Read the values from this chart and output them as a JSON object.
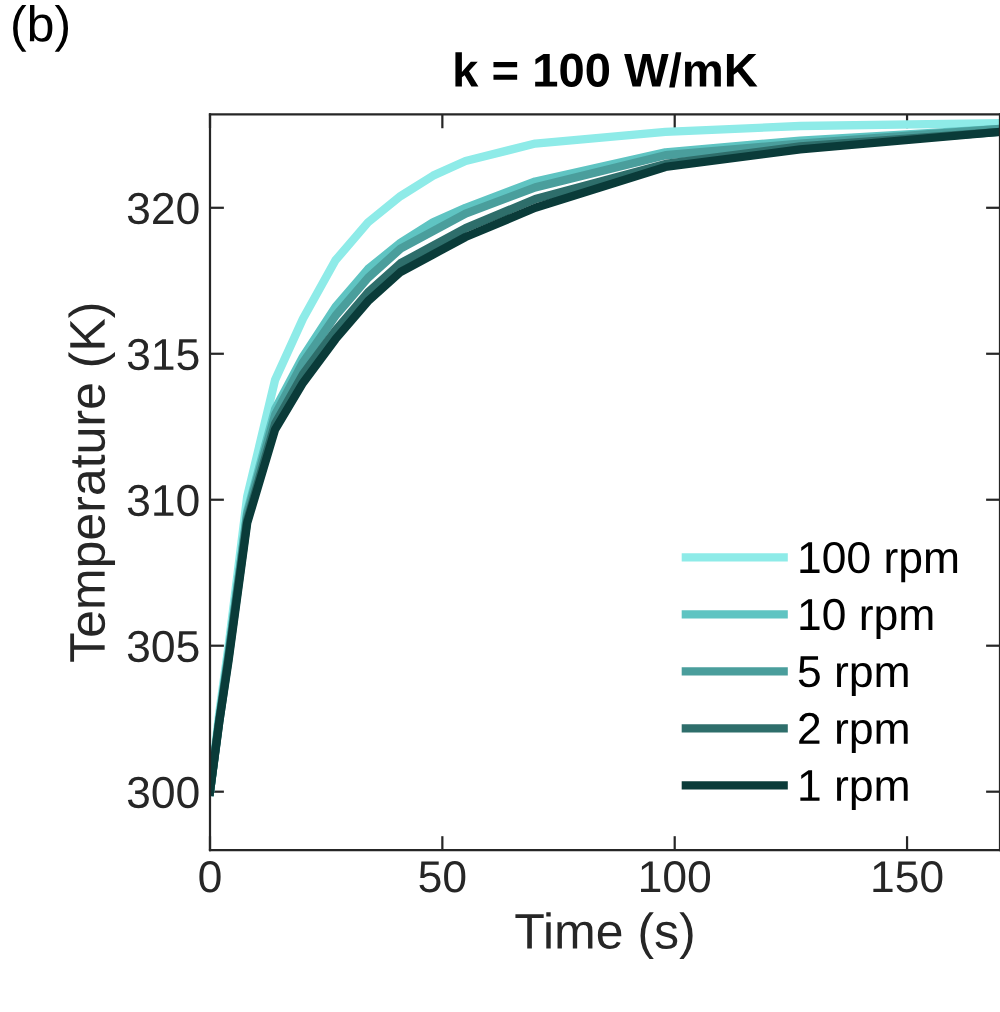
{
  "chart_data": {
    "type": "line",
    "title": "k = 100 W/mK",
    "xlabel": "Time (s)",
    "ylabel": "Temperature (K)",
    "annotations": [
      "(b)"
    ],
    "x": [
      0,
      2,
      4,
      8,
      14,
      20,
      27,
      34,
      41,
      48,
      55,
      70,
      98,
      127,
      170
    ],
    "series": [
      {
        "name": "100 rpm",
        "color": "#8eebe8",
        "values": [
          300,
          302.7,
          305.0,
          310.1,
          314.1,
          316.2,
          318.2,
          319.5,
          320.4,
          321.1,
          321.6,
          322.2,
          322.6,
          322.8,
          322.9
        ]
      },
      {
        "name": "10 rpm",
        "color": "#5fc4c2",
        "values": [
          300,
          302.5,
          304.7,
          309.6,
          313.1,
          314.9,
          316.6,
          317.9,
          318.8,
          319.5,
          320.0,
          320.9,
          321.9,
          322.3,
          322.7
        ]
      },
      {
        "name": "5 rpm",
        "color": "#4a9e9c",
        "values": [
          300,
          302.5,
          304.7,
          309.5,
          312.9,
          314.7,
          316.3,
          317.6,
          318.6,
          319.2,
          319.8,
          320.7,
          321.8,
          322.2,
          322.7
        ]
      },
      {
        "name": "2 rpm",
        "color": "#2e6e6b",
        "values": [
          300,
          302.4,
          304.6,
          309.3,
          312.6,
          314.3,
          315.8,
          317.1,
          318.1,
          318.7,
          319.3,
          320.3,
          321.5,
          322.1,
          322.6
        ]
      },
      {
        "name": "1 rpm",
        "color": "#0a3b39",
        "values": [
          300,
          302.4,
          304.5,
          309.2,
          312.4,
          314.0,
          315.5,
          316.8,
          317.8,
          318.4,
          319.0,
          320.0,
          321.4,
          322.0,
          322.6
        ]
      }
    ],
    "xlim": [
      0,
      170
    ],
    "xticks": [
      0,
      50,
      100,
      150
    ],
    "ylim": [
      298,
      323.2
    ],
    "yticks": [
      300,
      305,
      310,
      315,
      320
    ],
    "legend": "bottom right",
    "grid": false,
    "marker": "none",
    "line_style": "solid"
  }
}
